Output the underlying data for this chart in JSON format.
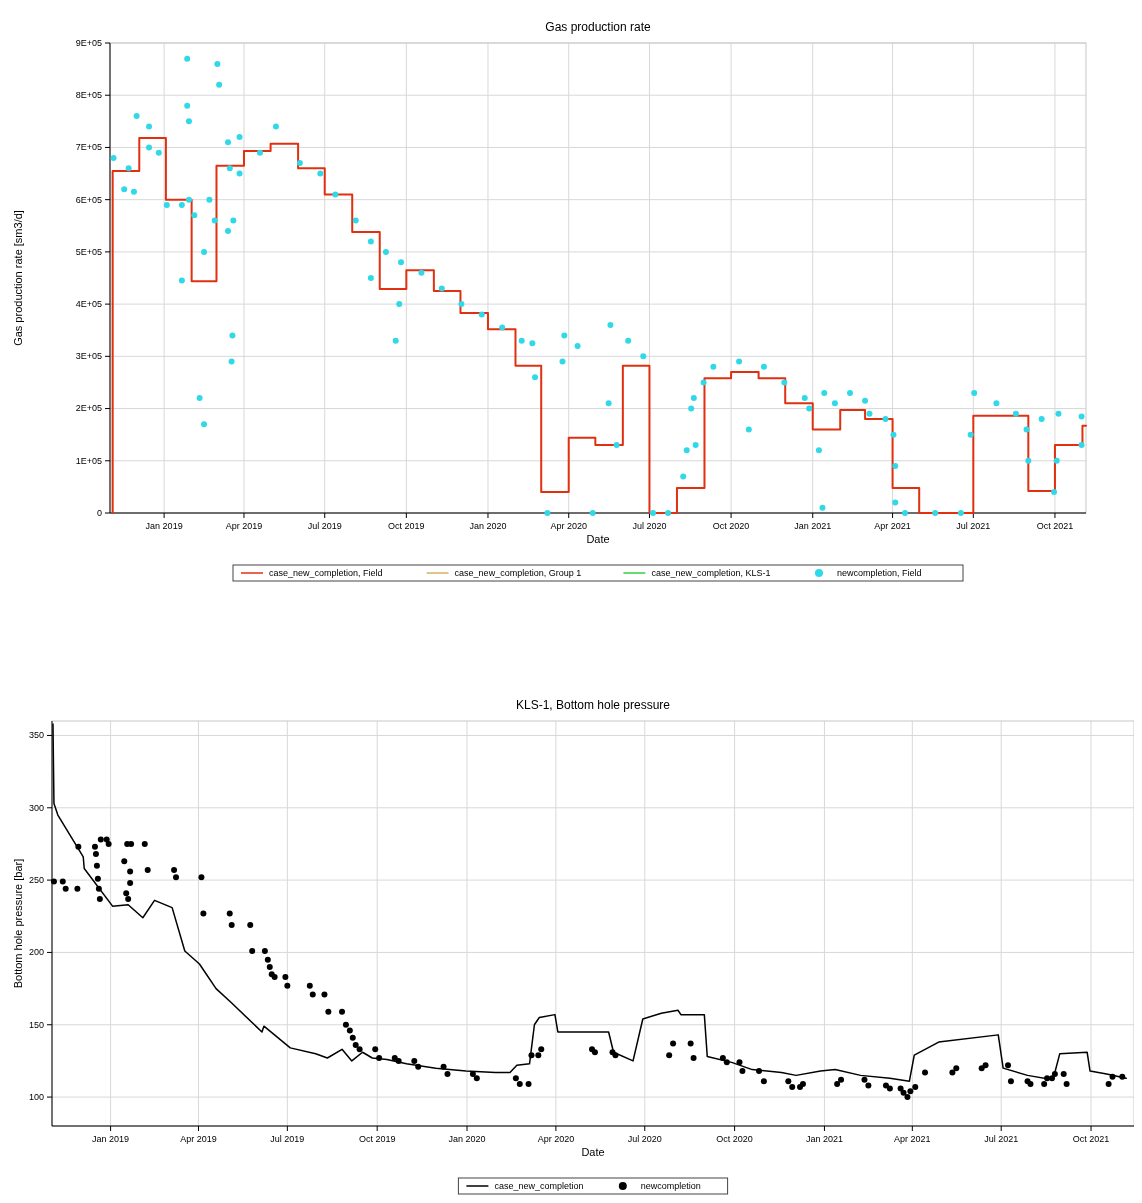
{
  "chart_data": [
    {
      "type": "line",
      "title": "Gas production rate",
      "xlabel": "Date",
      "ylabel": "Gas production rate [sm3/d]",
      "xlim": [
        "2018-11-01",
        "2021-11-05"
      ],
      "ylim": [
        0,
        900000
      ],
      "xticks": [
        {
          "value": "2019-01-01",
          "label": "Jan 2019"
        },
        {
          "value": "2019-04-01",
          "label": "Apr 2019"
        },
        {
          "value": "2019-07-01",
          "label": "Jul 2019"
        },
        {
          "value": "2019-10-01",
          "label": "Oct 2019"
        },
        {
          "value": "2020-01-01",
          "label": "Jan 2020"
        },
        {
          "value": "2020-04-01",
          "label": "Apr 2020"
        },
        {
          "value": "2020-07-01",
          "label": "Jul 2020"
        },
        {
          "value": "2020-10-01",
          "label": "Oct 2020"
        },
        {
          "value": "2021-01-01",
          "label": "Jan 2021"
        },
        {
          "value": "2021-04-01",
          "label": "Apr 2021"
        },
        {
          "value": "2021-07-01",
          "label": "Jul 2021"
        },
        {
          "value": "2021-10-01",
          "label": "Oct 2021"
        }
      ],
      "yticks": [
        0,
        {
          "value": 100000,
          "label": "1E+05"
        },
        {
          "value": 200000,
          "label": "2E+05"
        },
        {
          "value": 300000,
          "label": "3E+05"
        },
        {
          "value": 400000,
          "label": "4E+05"
        },
        {
          "value": 500000,
          "label": "5E+05"
        },
        {
          "value": 600000,
          "label": "6E+05"
        },
        {
          "value": 700000,
          "label": "7E+05"
        },
        {
          "value": 800000,
          "label": "8E+05"
        },
        {
          "value": 900000,
          "label": "9E+05"
        }
      ],
      "grid": true,
      "legend": "bottom",
      "series": [
        {
          "name": "case_new_completion, Field",
          "type": "step",
          "color": "#e03010",
          "line_style": "solid",
          "marker": "none",
          "x": [
            "2018-11-04",
            "2018-11-04",
            "2018-12-04",
            "2019-01-03",
            "2019-02-01",
            "2019-03-01",
            "2019-04-01",
            "2019-05-01",
            "2019-06-01",
            "2019-07-01",
            "2019-08-01",
            "2019-09-01",
            "2019-10-01",
            "2019-11-01",
            "2019-12-01",
            "2020-01-01",
            "2020-02-01",
            "2020-03-01",
            "2020-04-01",
            "2020-05-01",
            "2020-06-01",
            "2020-07-01",
            "2020-08-01",
            "2020-09-01",
            "2020-10-01",
            "2020-11-01",
            "2020-12-01",
            "2021-01-01",
            "2021-02-01",
            "2021-03-01",
            "2021-04-01",
            "2021-05-01",
            "2021-07-01",
            "2021-09-01",
            "2021-10-01",
            "2021-11-01",
            "2021-11-05"
          ],
          "values": [
            0,
            655000,
            718000,
            600000,
            444000,
            665000,
            693000,
            707000,
            660000,
            610000,
            538000,
            429000,
            465000,
            425000,
            383000,
            352000,
            282000,
            40000,
            144000,
            130000,
            282000,
            0,
            48000,
            258000,
            270000,
            258000,
            210000,
            160000,
            197000,
            180000,
            48000,
            0,
            186000,
            42000,
            130000,
            167000,
            167000
          ]
        },
        {
          "name": "case_new_completion, Group 1",
          "type": "step",
          "color": "#d4b060",
          "line_style": "solid",
          "marker": "none",
          "values": [
            null,
            null
          ]
        },
        {
          "name": "case_new_completion, KLS-1",
          "type": "step",
          "color": "#30d040",
          "line_style": "solid",
          "marker": "none",
          "values": [
            null,
            null
          ]
        },
        {
          "name": "newcompletion, Field",
          "type": "scatter",
          "color": "#30d8e8",
          "marker": "circle",
          "x": [
            "2018-11-05",
            "2018-11-22",
            "2018-11-17",
            "2018-11-28",
            "2018-12-01",
            "2018-12-15",
            "2018-12-15",
            "2018-12-26",
            "2019-01-04",
            "2019-01-21",
            "2019-01-21",
            "2019-01-27",
            "2019-01-27",
            "2019-01-29",
            "2019-01-29",
            "2019-02-04",
            "2019-02-10",
            "2019-02-15",
            "2019-02-15",
            "2019-02-21",
            "2019-02-27",
            "2019-03-02",
            "2019-03-04",
            "2019-03-14",
            "2019-03-14",
            "2019-03-16",
            "2019-03-18",
            "2019-03-19",
            "2019-03-20",
            "2019-03-27",
            "2019-03-27",
            "2019-04-19",
            "2019-05-07",
            "2019-06-03",
            "2019-06-26",
            "2019-07-13",
            "2019-08-05",
            "2019-08-22",
            "2019-08-22",
            "2019-09-08",
            "2019-09-19",
            "2019-09-23",
            "2019-09-25",
            "2019-10-18",
            "2019-11-10",
            "2019-12-02",
            "2019-12-25",
            "2020-01-17",
            "2020-02-08",
            "2020-02-20",
            "2020-02-23",
            "2020-03-08",
            "2020-03-25",
            "2020-03-27",
            "2020-04-11",
            "2020-04-28",
            "2020-05-16",
            "2020-05-18",
            "2020-05-25",
            "2020-06-07",
            "2020-06-24",
            "2020-07-05",
            "2020-07-22",
            "2020-08-08",
            "2020-08-12",
            "2020-08-17",
            "2020-08-20",
            "2020-08-22",
            "2020-08-31",
            "2020-09-11",
            "2020-10-10",
            "2020-10-21",
            "2020-11-07",
            "2020-11-30",
            "2020-12-23",
            "2020-12-28",
            "2021-01-08",
            "2021-01-12",
            "2021-01-14",
            "2021-01-26",
            "2021-02-12",
            "2021-03-01",
            "2021-03-06",
            "2021-03-24",
            "2021-04-02",
            "2021-04-04",
            "2021-04-04",
            "2021-04-15",
            "2021-05-19",
            "2021-06-17",
            "2021-06-28",
            "2021-07-02",
            "2021-07-27",
            "2021-08-18",
            "2021-08-30",
            "2021-09-01",
            "2021-09-16",
            "2021-09-30",
            "2021-10-03",
            "2021-10-05",
            "2021-10-31",
            "2021-10-31"
          ],
          "values": [
            680000,
            660000,
            620000,
            615000,
            760000,
            740000,
            700000,
            690000,
            590000,
            590000,
            445000,
            870000,
            780000,
            750000,
            600000,
            570000,
            220000,
            170000,
            500000,
            600000,
            560000,
            860000,
            820000,
            710000,
            540000,
            660000,
            290000,
            340000,
            560000,
            720000,
            650000,
            690000,
            740000,
            670000,
            650000,
            610000,
            560000,
            520000,
            450000,
            500000,
            330000,
            400000,
            480000,
            460000,
            430000,
            400000,
            380000,
            355000,
            330000,
            325000,
            260000,
            0,
            290000,
            340000,
            320000,
            0,
            210000,
            360000,
            130000,
            330000,
            300000,
            0,
            0,
            70000,
            120000,
            200000,
            220000,
            130000,
            250000,
            280000,
            290000,
            160000,
            280000,
            250000,
            220000,
            200000,
            120000,
            10000,
            230000,
            210000,
            230000,
            215000,
            190000,
            180000,
            150000,
            90000,
            20000,
            0,
            0,
            0,
            150000,
            230000,
            210000,
            190000,
            160000,
            100000,
            180000,
            40000,
            100000,
            190000,
            185000,
            130000
          ]
        }
      ]
    },
    {
      "type": "line",
      "title": "KLS-1, Bottom hole pressure",
      "xlabel": "Date",
      "ylabel": "Bottom hole pressure [bar]",
      "xlim": [
        "2018-11-02",
        "2021-11-14"
      ],
      "ylim": [
        80,
        360
      ],
      "xticks": [
        {
          "value": "2019-01-01",
          "label": "Jan 2019"
        },
        {
          "value": "2019-04-01",
          "label": "Apr 2019"
        },
        {
          "value": "2019-07-01",
          "label": "Jul 2019"
        },
        {
          "value": "2019-10-01",
          "label": "Oct 2019"
        },
        {
          "value": "2020-01-01",
          "label": "Jan 2020"
        },
        {
          "value": "2020-04-01",
          "label": "Apr 2020"
        },
        {
          "value": "2020-07-01",
          "label": "Jul 2020"
        },
        {
          "value": "2020-10-01",
          "label": "Oct 2020"
        },
        {
          "value": "2021-01-01",
          "label": "Jan 2021"
        },
        {
          "value": "2021-04-01",
          "label": "Apr 2021"
        },
        {
          "value": "2021-07-01",
          "label": "Jul 2021"
        },
        {
          "value": "2021-10-01",
          "label": "Oct 2021"
        }
      ],
      "yticks": [
        100,
        150,
        200,
        250,
        300,
        350
      ],
      "grid": true,
      "legend": "bottom",
      "series": [
        {
          "name": "case_new_completion",
          "type": "line",
          "color": "#000000",
          "line_style": "solid",
          "marker": "none",
          "x": [
            "2018-11-03",
            "2018-11-04",
            "2018-11-08",
            "2018-12-04",
            "2018-12-05",
            "2019-01-03",
            "2019-01-19",
            "2019-02-03",
            "2019-02-15",
            "2019-03-05",
            "2019-03-18",
            "2019-04-02",
            "2019-04-19",
            "2019-05-05",
            "2019-06-05",
            "2019-06-07",
            "2019-07-04",
            "2019-07-30",
            "2019-08-11",
            "2019-08-26",
            "2019-09-05",
            "2019-09-16",
            "2019-09-26",
            "2019-10-11",
            "2019-10-31",
            "2019-11-30",
            "2019-12-31",
            "2020-01-30",
            "2020-02-14",
            "2020-02-21",
            "2020-03-05",
            "2020-03-10",
            "2020-03-15",
            "2020-03-31",
            "2020-04-03",
            "2020-05-25",
            "2020-05-30",
            "2020-06-19",
            "2020-06-29",
            "2020-07-18",
            "2020-08-04",
            "2020-08-07",
            "2020-08-31",
            "2020-09-03",
            "2020-09-28",
            "2020-10-19",
            "2020-11-18",
            "2020-12-03",
            "2020-12-28",
            "2021-01-12",
            "2021-02-07",
            "2021-03-09",
            "2021-03-29",
            "2021-04-03",
            "2021-04-28",
            "2021-06-28",
            "2021-07-03",
            "2021-07-28",
            "2021-08-23",
            "2021-08-30",
            "2021-09-27",
            "2021-09-30",
            "2021-10-17",
            "2021-11-06"
          ],
          "values": [
            358,
            303,
            295,
            266,
            258,
            232,
            233,
            224,
            236,
            231,
            201,
            192,
            175,
            165,
            145,
            149,
            134,
            130,
            127,
            133,
            125,
            131,
            127,
            126,
            123,
            120,
            118,
            117,
            117,
            122,
            123,
            150,
            155,
            157,
            145,
            145,
            131,
            125,
            154,
            158,
            160,
            157,
            157,
            128,
            124,
            119,
            117,
            115,
            118,
            119,
            115,
            113,
            111,
            129,
            138,
            143,
            120,
            115,
            112,
            130,
            131,
            118,
            116,
            113
          ]
        },
        {
          "name": "newcompletion",
          "type": "scatter",
          "color": "#000000",
          "marker": "circle",
          "x": [
            "2018-11-04",
            "2018-11-13",
            "2018-11-16",
            "2018-11-28",
            "2018-11-29",
            "2018-12-16",
            "2018-12-17",
            "2018-12-18",
            "2018-12-19",
            "2018-12-20",
            "2018-12-21",
            "2018-12-22",
            "2018-12-28",
            "2018-12-30",
            "2019-01-18",
            "2019-01-15",
            "2019-01-17",
            "2019-01-19",
            "2019-01-21",
            "2019-01-21",
            "2019-01-22",
            "2019-02-05",
            "2019-02-08",
            "2019-03-07",
            "2019-03-09",
            "2019-04-04",
            "2019-04-06",
            "2019-05-03",
            "2019-05-05",
            "2019-05-24",
            "2019-05-26",
            "2019-06-08",
            "2019-06-11",
            "2019-06-13",
            "2019-06-15",
            "2019-06-18",
            "2019-06-29",
            "2019-07-01",
            "2019-07-24",
            "2019-07-27",
            "2019-08-08",
            "2019-08-12",
            "2019-08-26",
            "2019-08-30",
            "2019-09-03",
            "2019-09-06",
            "2019-09-09",
            "2019-09-13",
            "2019-09-29",
            "2019-10-03",
            "2019-10-19",
            "2019-10-23",
            "2019-11-08",
            "2019-11-12",
            "2019-12-08",
            "2019-12-12",
            "2020-01-07",
            "2020-01-11",
            "2020-02-20",
            "2020-02-24",
            "2020-03-04",
            "2020-03-07",
            "2020-03-14",
            "2020-03-17",
            "2020-05-08",
            "2020-05-11",
            "2020-05-29",
            "2020-06-01",
            "2020-07-26",
            "2020-07-30",
            "2020-08-17",
            "2020-08-20",
            "2020-09-19",
            "2020-09-23",
            "2020-10-06",
            "2020-10-09",
            "2020-10-26",
            "2020-10-31",
            "2020-11-25",
            "2020-11-29",
            "2020-12-07",
            "2020-12-10",
            "2021-01-14",
            "2021-01-18",
            "2021-02-11",
            "2021-02-15",
            "2021-03-05",
            "2021-03-09",
            "2021-03-20",
            "2021-03-23",
            "2021-03-27",
            "2021-03-30",
            "2021-04-04",
            "2021-04-14",
            "2021-05-12",
            "2021-05-16",
            "2021-06-11",
            "2021-06-15",
            "2021-07-08",
            "2021-07-11",
            "2021-07-28",
            "2021-07-31",
            "2021-08-14",
            "2021-08-17",
            "2021-08-22",
            "2021-08-25",
            "2021-09-03",
            "2021-09-06",
            "2021-10-19",
            "2021-10-23",
            "2021-11-02"
          ],
          "values": [
            249,
            249,
            244,
            244,
            273,
            273,
            268,
            260,
            251,
            244,
            237,
            278,
            278,
            275,
            275,
            263,
            241,
            237,
            248,
            256,
            275,
            275,
            257,
            257,
            252,
            252,
            227,
            227,
            219,
            219,
            201,
            201,
            195,
            190,
            185,
            183,
            183,
            177,
            177,
            171,
            171,
            159,
            159,
            150,
            146,
            141,
            136,
            133,
            133,
            127,
            127,
            125,
            125,
            121,
            121,
            116,
            116,
            113,
            113,
            109,
            109,
            129,
            129,
            133,
            133,
            131,
            131,
            129,
            129,
            137,
            137,
            127,
            127,
            124,
            124,
            118,
            118,
            111,
            111,
            107,
            107,
            109,
            109,
            112,
            112,
            108,
            108,
            106,
            106,
            103,
            100,
            104,
            107,
            117,
            117,
            120,
            120,
            122,
            122,
            111,
            111,
            109,
            109,
            113,
            113,
            116,
            116,
            109,
            109,
            114,
            114
          ]
        }
      ]
    }
  ]
}
